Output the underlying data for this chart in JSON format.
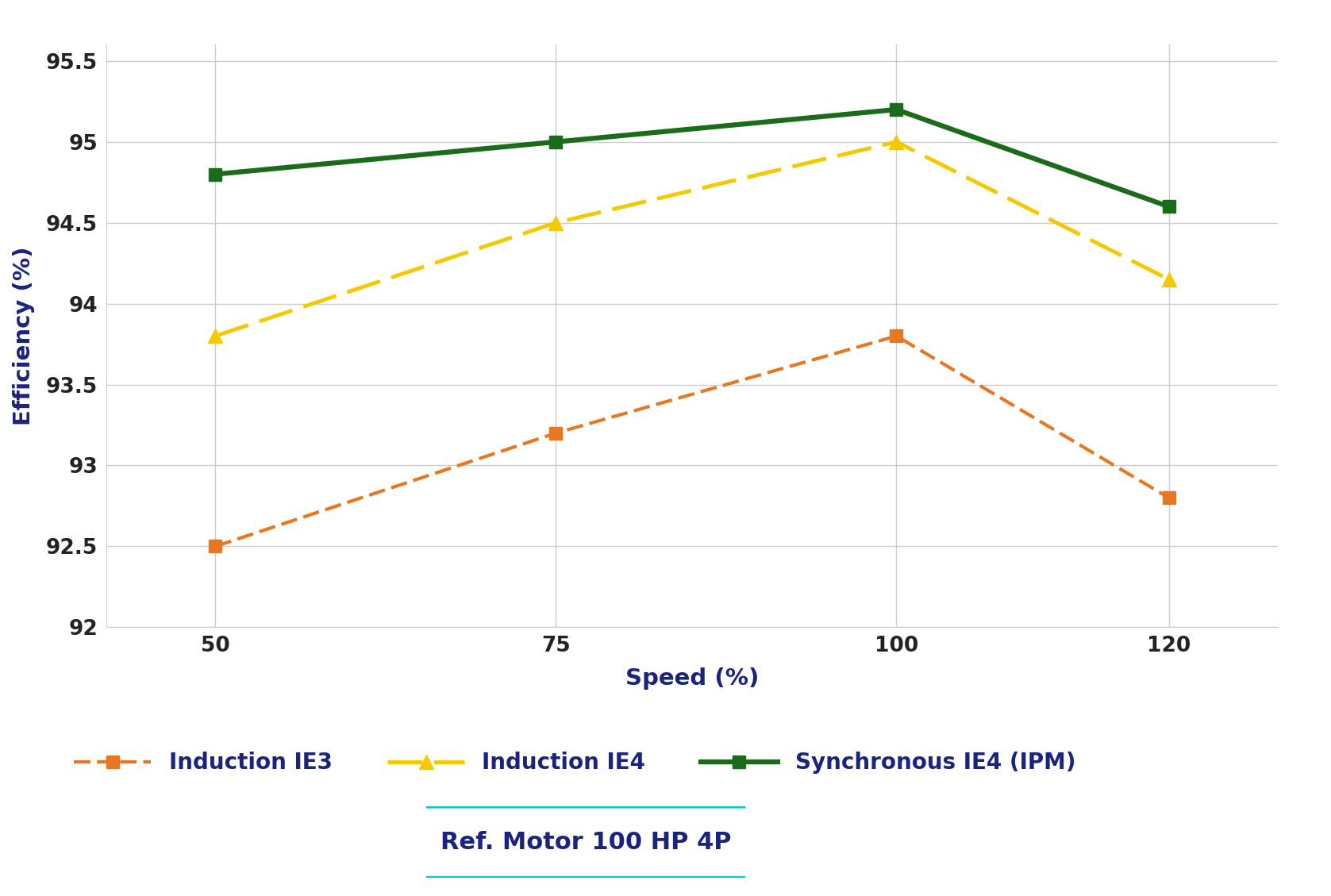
{
  "speed": [
    50,
    75,
    100,
    120
  ],
  "induction_ie3": [
    92.5,
    93.2,
    93.8,
    92.8
  ],
  "induction_ie4": [
    93.8,
    94.5,
    95.0,
    94.15
  ],
  "synchronous_ie4": [
    94.8,
    95.0,
    95.2,
    94.6
  ],
  "ie3_color": "#E87722",
  "ie4_color": "#F5C800",
  "sync_color": "#1A6B1A",
  "ylabel": "Efficiency (%)",
  "xlabel": "Speed (%)",
  "ylim": [
    92,
    95.6
  ],
  "xlim": [
    42,
    128
  ],
  "yticks": [
    92,
    92.5,
    93,
    93.5,
    94,
    94.5,
    95,
    95.5
  ],
  "xticks": [
    50,
    75,
    100,
    120
  ],
  "legend_ie3": "Induction IE3",
  "legend_ie4": "Induction IE4",
  "legend_sync": "Synchronous IE4 (IPM)",
  "ref_label": "Ref. Motor 100 HP 4P",
  "ref_box_color": "#00C8D7",
  "label_color": "#1A237E",
  "tick_color": "#222222",
  "background_color": "#FFFFFF",
  "grid_color": "#CCCCCC"
}
